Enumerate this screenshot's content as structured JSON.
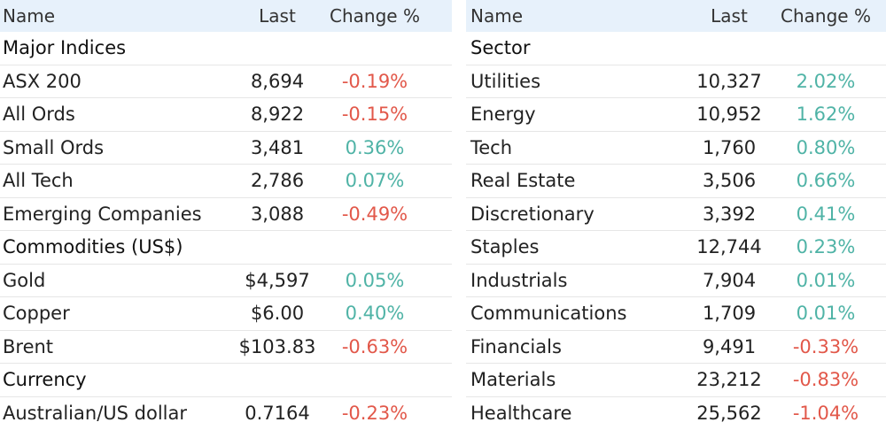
{
  "headers": {
    "name": "Name",
    "last": "Last",
    "change": "Change %"
  },
  "colors": {
    "positive": "#4fb3a6",
    "negative": "#e2584a",
    "header_bg": "#e7f1fb"
  },
  "left": {
    "sections": [
      {
        "title": "Major Indices",
        "rows": [
          {
            "name": "ASX 200",
            "last": "8,694",
            "change": "-0.19%",
            "dir": "neg"
          },
          {
            "name": "All Ords",
            "last": "8,922",
            "change": "-0.15%",
            "dir": "neg"
          },
          {
            "name": "Small Ords",
            "last": "3,481",
            "change": "0.36%",
            "dir": "pos"
          },
          {
            "name": "All Tech",
            "last": "2,786",
            "change": "0.07%",
            "dir": "pos"
          },
          {
            "name": "Emerging Companies",
            "last": "3,088",
            "change": "-0.49%",
            "dir": "neg"
          }
        ]
      },
      {
        "title": "Commodities (US$)",
        "rows": [
          {
            "name": "Gold",
            "last": "$4,597",
            "change": "0.05%",
            "dir": "pos"
          },
          {
            "name": "Copper",
            "last": "$6.00",
            "change": "0.40%",
            "dir": "pos"
          },
          {
            "name": "Brent",
            "last": "$103.83",
            "change": "-0.63%",
            "dir": "neg"
          }
        ]
      },
      {
        "title": "Currency",
        "rows": [
          {
            "name": "Australian/US dollar",
            "last": "0.7164",
            "change": "-0.23%",
            "dir": "neg"
          }
        ]
      }
    ]
  },
  "right": {
    "sections": [
      {
        "title": "Sector",
        "rows": [
          {
            "name": "Utilities",
            "last": "10,327",
            "change": "2.02%",
            "dir": "pos"
          },
          {
            "name": "Energy",
            "last": "10,952",
            "change": "1.62%",
            "dir": "pos"
          },
          {
            "name": "Tech",
            "last": "1,760",
            "change": "0.80%",
            "dir": "pos"
          },
          {
            "name": "Real Estate",
            "last": "3,506",
            "change": "0.66%",
            "dir": "pos"
          },
          {
            "name": "Discretionary",
            "last": "3,392",
            "change": "0.41%",
            "dir": "pos"
          },
          {
            "name": "Staples",
            "last": "12,744",
            "change": "0.23%",
            "dir": "pos"
          },
          {
            "name": "Industrials",
            "last": "7,904",
            "change": "0.01%",
            "dir": "pos"
          },
          {
            "name": "Communications",
            "last": "1,709",
            "change": "0.01%",
            "dir": "pos"
          },
          {
            "name": "Financials",
            "last": "9,491",
            "change": "-0.33%",
            "dir": "neg"
          },
          {
            "name": "Materials",
            "last": "23,212",
            "change": "-0.83%",
            "dir": "neg"
          },
          {
            "name": "Healthcare",
            "last": "25,562",
            "change": "-1.04%",
            "dir": "neg"
          }
        ]
      }
    ]
  }
}
